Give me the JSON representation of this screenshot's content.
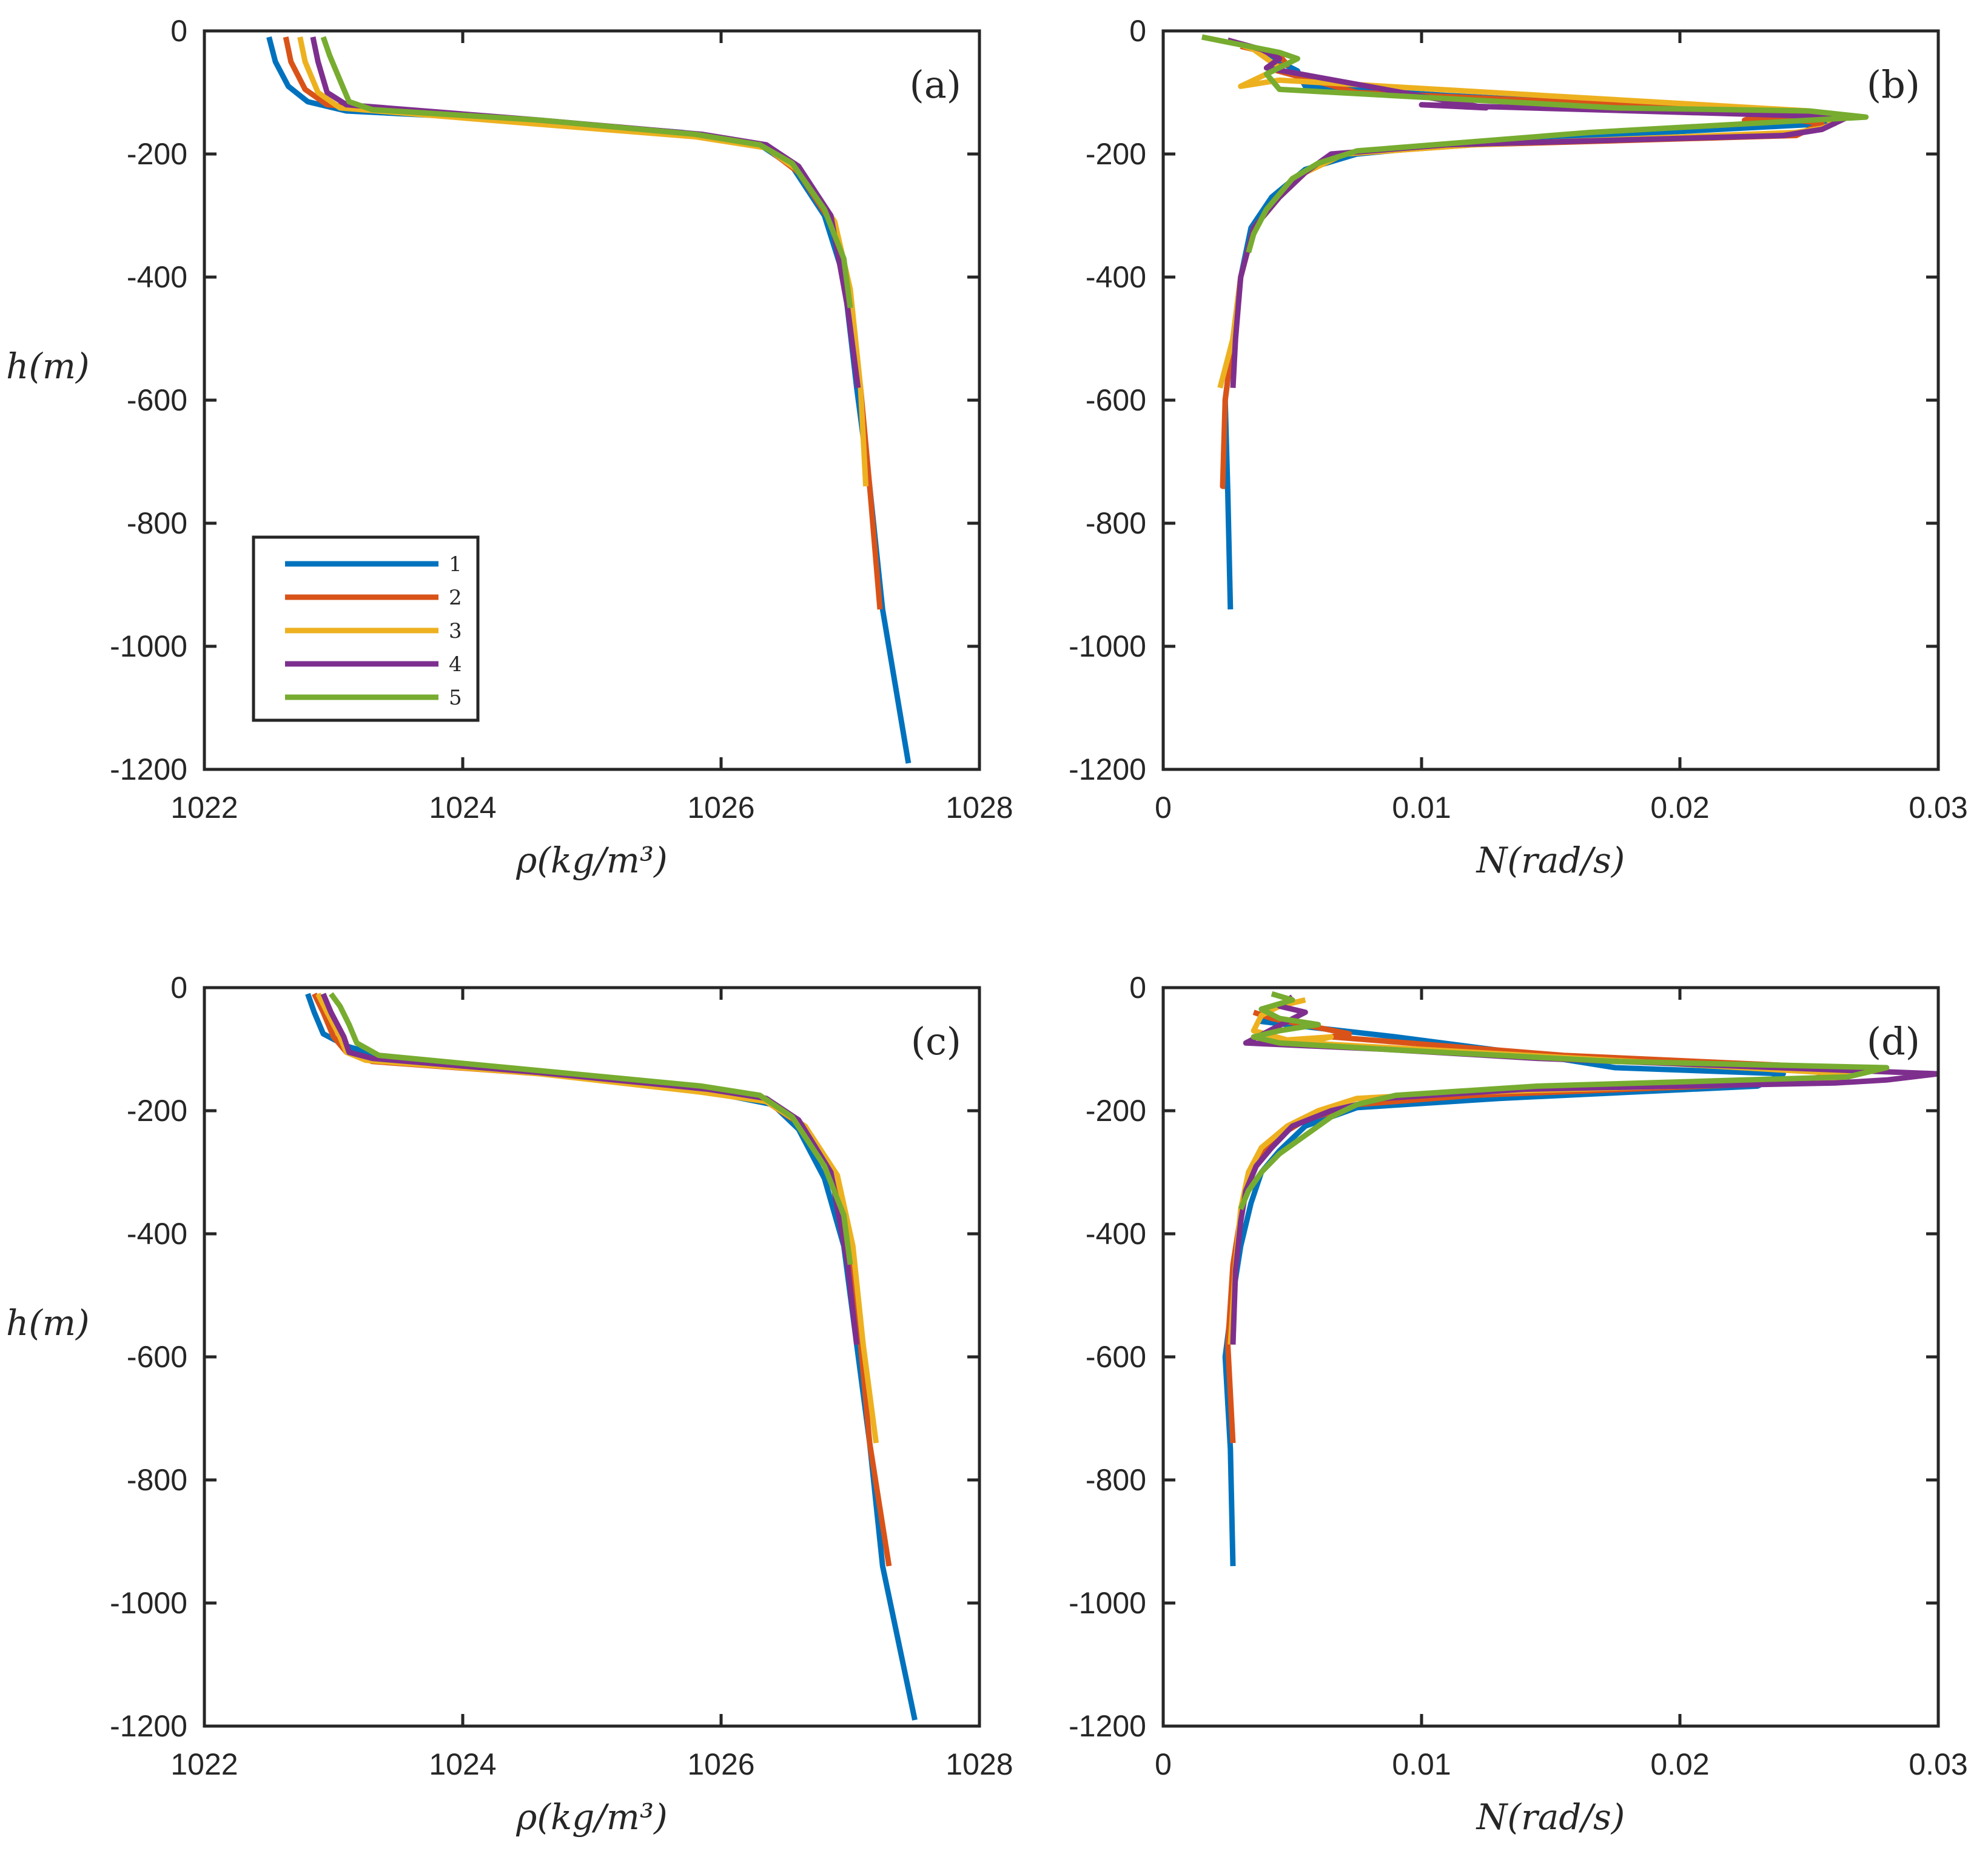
{
  "figure": {
    "series_colors": [
      "#0072BD",
      "#D95319",
      "#EDB120",
      "#7E2F8E",
      "#77AC30"
    ]
  },
  "legend": {
    "entries": [
      "1",
      "2",
      "3",
      "4",
      "5"
    ]
  },
  "chart_data": [
    {
      "type": "line",
      "panel_label": "(a)",
      "xlabel": "ρ(kg/m³)",
      "ylabel": "h(m)",
      "xlim": [
        1022,
        1028
      ],
      "ylim": [
        -1200,
        0
      ],
      "xticks": [
        1022,
        1024,
        1026,
        1028
      ],
      "xtick_labels": [
        "1022",
        "1024",
        "1026",
        "1028"
      ],
      "yticks": [
        0,
        -200,
        -400,
        -600,
        -800,
        -1000,
        -1200
      ],
      "ytick_labels": [
        "0",
        "-200",
        "-400",
        "-600",
        "-800",
        "-1000",
        "-1200"
      ],
      "legend": true,
      "series": [
        {
          "name": "1",
          "x": [
            1022.5,
            1022.55,
            1022.65,
            1022.8,
            1023.1,
            1024.5,
            1025.7,
            1026.3,
            1026.55,
            1026.8,
            1026.95,
            1027.05,
            1027.15,
            1027.25,
            1027.45
          ],
          "y": [
            -10,
            -50,
            -90,
            -115,
            -130,
            -145,
            -165,
            -185,
            -220,
            -300,
            -400,
            -580,
            -740,
            -940,
            -1190
          ]
        },
        {
          "name": "2",
          "x": [
            1022.63,
            1022.67,
            1022.78,
            1022.95,
            1024.5,
            1025.8,
            1026.35,
            1026.6,
            1026.85,
            1026.98,
            1027.08,
            1027.15,
            1027.23
          ],
          "y": [
            -10,
            -50,
            -95,
            -120,
            -148,
            -170,
            -190,
            -230,
            -310,
            -420,
            -580,
            -740,
            -940
          ]
        },
        {
          "name": "3",
          "x": [
            1022.74,
            1022.78,
            1022.88,
            1023.05,
            1024.5,
            1025.8,
            1026.35,
            1026.62,
            1026.88,
            1027.0,
            1027.08,
            1027.12
          ],
          "y": [
            -10,
            -50,
            -100,
            -125,
            -150,
            -172,
            -190,
            -230,
            -310,
            -420,
            -580,
            -740
          ]
        },
        {
          "name": "4",
          "x": [
            1022.84,
            1022.88,
            1022.95,
            1023.1,
            1024.6,
            1025.85,
            1026.35,
            1026.6,
            1026.85,
            1026.98,
            1027.06
          ],
          "y": [
            -10,
            -50,
            -100,
            -120,
            -145,
            -168,
            -185,
            -220,
            -300,
            -450,
            -580
          ]
        },
        {
          "name": "5",
          "x": [
            1022.92,
            1022.97,
            1023.05,
            1023.12,
            1023.3,
            1024.6,
            1025.8,
            1026.3,
            1026.55,
            1026.8,
            1026.95,
            1027.0
          ],
          "y": [
            -10,
            -40,
            -80,
            -115,
            -128,
            -145,
            -168,
            -185,
            -215,
            -290,
            -370,
            -450
          ]
        }
      ]
    },
    {
      "type": "line",
      "panel_label": "(b)",
      "xlabel": "N(rad/s)",
      "ylabel": "",
      "xlim": [
        0,
        0.03
      ],
      "ylim": [
        -1200,
        0
      ],
      "xticks": [
        0,
        0.01,
        0.02,
        0.03
      ],
      "xtick_labels": [
        "0",
        "0.01",
        "0.02",
        "0.03"
      ],
      "yticks": [
        0,
        -200,
        -400,
        -600,
        -800,
        -1000,
        -1200
      ],
      "ytick_labels": [
        "0",
        "-200",
        "-400",
        "-600",
        "-800",
        "-1000",
        "-1200"
      ],
      "legend": false,
      "series": [
        {
          "name": "1",
          "x": [
            0.0035,
            0.0045,
            0.0052,
            0.0053,
            0.0055,
            0.011,
            0.0245,
            0.026,
            0.0125,
            0.0075,
            0.0055,
            0.0042,
            0.0034,
            0.003,
            0.0027,
            0.0024,
            0.0025,
            0.0026
          ],
          "y": [
            -30,
            -50,
            -65,
            -75,
            -90,
            -105,
            -135,
            -150,
            -180,
            -200,
            -225,
            -270,
            -320,
            -400,
            -500,
            -600,
            -750,
            -940
          ]
        },
        {
          "name": "2",
          "x": [
            0.003,
            0.0045,
            0.0048,
            0.004,
            0.0075,
            0.0235,
            0.0225,
            0.0235,
            0.0255,
            0.0245,
            0.012,
            0.007,
            0.0055,
            0.0045,
            0.0035,
            0.003,
            0.0027,
            0.0024,
            0.0023,
            0.0024
          ],
          "y": [
            -25,
            -40,
            -55,
            -60,
            -100,
            -130,
            -145,
            -140,
            -150,
            -170,
            -185,
            -200,
            -230,
            -270,
            -320,
            -400,
            -500,
            -600,
            -740,
            -740
          ]
        },
        {
          "name": "3",
          "x": [
            0.0025,
            0.0035,
            0.0045,
            0.003,
            0.0045,
            0.025,
            0.026,
            0.0255,
            0.0245,
            0.012,
            0.007,
            0.0055,
            0.0045,
            0.0035,
            0.003,
            0.0027,
            0.0022
          ],
          "y": [
            -15,
            -30,
            -60,
            -90,
            -80,
            -130,
            -150,
            -158,
            -165,
            -185,
            -200,
            -230,
            -270,
            -320,
            -400,
            -500,
            -580
          ]
        },
        {
          "name": "4",
          "x": [
            0.0025,
            0.0038,
            0.0045,
            0.004,
            0.0125,
            0.01,
            0.0265,
            0.0255,
            0.024,
            0.011,
            0.0065,
            0.0055,
            0.0045,
            0.0035,
            0.003,
            0.0028,
            0.0027
          ],
          "y": [
            -15,
            -30,
            -45,
            -60,
            -125,
            -120,
            -140,
            -160,
            -170,
            -185,
            -200,
            -230,
            -270,
            -320,
            -400,
            -500,
            -580
          ]
        },
        {
          "name": "5",
          "x": [
            0.0015,
            0.0045,
            0.0052,
            0.004,
            0.0045,
            0.0175,
            0.025,
            0.0272,
            0.0165,
            0.0075,
            0.006,
            0.005,
            0.0045,
            0.004,
            0.0035,
            0.0033
          ],
          "y": [
            -10,
            -35,
            -45,
            -70,
            -95,
            -125,
            -130,
            -140,
            -165,
            -195,
            -215,
            -240,
            -265,
            -290,
            -330,
            -360
          ]
        }
      ]
    },
    {
      "type": "line",
      "panel_label": "(c)",
      "xlabel": "ρ(kg/m³)",
      "ylabel": "h(m)",
      "xlim": [
        1022,
        1028
      ],
      "ylim": [
        -1200,
        0
      ],
      "xticks": [
        1022,
        1024,
        1026,
        1028
      ],
      "xtick_labels": [
        "1022",
        "1024",
        "1026",
        "1028"
      ],
      "yticks": [
        0,
        -200,
        -400,
        -600,
        -800,
        -1000,
        -1200
      ],
      "ytick_labels": [
        "0",
        "-200",
        "-400",
        "-600",
        "-800",
        "-1000",
        "-1200"
      ],
      "legend": false,
      "series": [
        {
          "name": "1",
          "x": [
            1022.8,
            1022.85,
            1022.92,
            1023.1,
            1023.35,
            1024.5,
            1025.8,
            1026.4,
            1026.6,
            1026.8,
            1026.95,
            1027.05,
            1027.15,
            1027.25,
            1027.5
          ],
          "y": [
            -10,
            -40,
            -75,
            -95,
            -110,
            -135,
            -165,
            -190,
            -230,
            -310,
            -420,
            -580,
            -740,
            -940,
            -1190
          ]
        },
        {
          "name": "2",
          "x": [
            1022.85,
            1022.92,
            1023.0,
            1023.1,
            1023.3,
            1024.6,
            1025.9,
            1026.35,
            1026.6,
            1026.85,
            1026.98,
            1027.08,
            1027.15,
            1027.3
          ],
          "y": [
            -10,
            -40,
            -80,
            -105,
            -120,
            -140,
            -168,
            -185,
            -220,
            -300,
            -420,
            -580,
            -740,
            -940
          ]
        },
        {
          "name": "3",
          "x": [
            1022.88,
            1022.95,
            1023.05,
            1023.1,
            1023.25,
            1024.6,
            1025.85,
            1026.35,
            1026.65,
            1026.9,
            1027.02,
            1027.1,
            1027.2
          ],
          "y": [
            -10,
            -40,
            -80,
            -105,
            -118,
            -140,
            -170,
            -185,
            -225,
            -305,
            -420,
            -580,
            -740
          ]
        },
        {
          "name": "4",
          "x": [
            1022.92,
            1022.98,
            1023.08,
            1023.12,
            1023.3,
            1024.6,
            1025.9,
            1026.35,
            1026.6,
            1026.85,
            1026.98,
            1027.05
          ],
          "y": [
            -10,
            -40,
            -80,
            -105,
            -115,
            -138,
            -165,
            -180,
            -215,
            -300,
            -450,
            -580
          ]
        },
        {
          "name": "5",
          "x": [
            1022.98,
            1023.05,
            1023.12,
            1023.18,
            1023.35,
            1024.6,
            1025.85,
            1026.3,
            1026.55,
            1026.8,
            1026.95,
            1027.0
          ],
          "y": [
            -10,
            -30,
            -60,
            -90,
            -110,
            -135,
            -160,
            -175,
            -210,
            -290,
            -370,
            -450
          ]
        }
      ]
    },
    {
      "type": "line",
      "panel_label": "(d)",
      "xlabel": "N(rad/s)",
      "ylabel": "",
      "xlim": [
        0,
        0.03
      ],
      "ylim": [
        -1200,
        0
      ],
      "xticks": [
        0,
        0.01,
        0.02,
        0.03
      ],
      "xtick_labels": [
        "0",
        "0.01",
        "0.02",
        "0.03"
      ],
      "yticks": [
        0,
        -200,
        -400,
        -600,
        -800,
        -1000,
        -1200
      ],
      "ytick_labels": [
        "0",
        "-200",
        "-400",
        "-600",
        "-800",
        "-1000",
        "-1200"
      ],
      "legend": false,
      "series": [
        {
          "name": "1",
          "x": [
            0.0038,
            0.0045,
            0.0038,
            0.0048,
            0.009,
            0.0145,
            0.016,
            0.0175,
            0.024,
            0.023,
            0.013,
            0.0075,
            0.0055,
            0.0045,
            0.0038,
            0.0034,
            0.003,
            0.0027,
            0.0024,
            0.0026,
            0.0027
          ],
          "y": [
            -40,
            -50,
            -55,
            -60,
            -80,
            -110,
            -120,
            -130,
            -140,
            -160,
            -180,
            -195,
            -225,
            -265,
            -300,
            -350,
            -420,
            -500,
            -600,
            -750,
            -940
          ]
        },
        {
          "name": "2",
          "x": [
            0.0035,
            0.0042,
            0.0048,
            0.0072,
            0.0065,
            0.0155,
            0.026,
            0.0255,
            0.024,
            0.012,
            0.0075,
            0.0055,
            0.0045,
            0.0038,
            0.0033,
            0.003,
            0.0027,
            0.0025,
            0.0027
          ],
          "y": [
            -40,
            -50,
            -55,
            -75,
            -80,
            -110,
            -130,
            -145,
            -155,
            -175,
            -190,
            -215,
            -240,
            -270,
            -310,
            -370,
            -450,
            -580,
            -740
          ]
        },
        {
          "name": "3",
          "x": [
            0.0055,
            0.0045,
            0.0038,
            0.0035,
            0.0048,
            0.0065,
            0.0055,
            0.012,
            0.0265,
            0.026,
            0.024,
            0.012,
            0.0075,
            0.006,
            0.0048,
            0.0038,
            0.0033,
            0.003,
            0.0028,
            0.0026
          ],
          "y": [
            -20,
            -30,
            -45,
            -70,
            -85,
            -80,
            -90,
            -105,
            -140,
            -150,
            -155,
            -170,
            -180,
            -200,
            -225,
            -260,
            -300,
            -360,
            -450,
            -580
          ]
        },
        {
          "name": "4",
          "x": [
            0.005,
            0.0045,
            0.0055,
            0.0048,
            0.0032,
            0.0085,
            0.0145,
            0.03,
            0.028,
            0.026,
            0.014,
            0.0085,
            0.0065,
            0.005,
            0.0042,
            0.0036,
            0.0032,
            0.003,
            0.0028,
            0.0027
          ],
          "y": [
            -15,
            -30,
            -40,
            -55,
            -90,
            -100,
            -115,
            -140,
            -150,
            -155,
            -165,
            -180,
            -200,
            -225,
            -260,
            -290,
            -330,
            -380,
            -460,
            -580
          ]
        },
        {
          "name": "5",
          "x": [
            0.0042,
            0.005,
            0.0038,
            0.0045,
            0.006,
            0.0045,
            0.0035,
            0.0045,
            0.0085,
            0.0175,
            0.028,
            0.0275,
            0.0265,
            0.0145,
            0.009,
            0.0075,
            0.0065,
            0.0055,
            0.0045,
            0.0038,
            0.0033,
            0.003
          ],
          "y": [
            -10,
            -20,
            -35,
            -50,
            -60,
            -70,
            -80,
            -90,
            -100,
            -120,
            -130,
            -135,
            -145,
            -160,
            -175,
            -190,
            -210,
            -240,
            -270,
            -300,
            -330,
            -360
          ]
        }
      ]
    }
  ]
}
